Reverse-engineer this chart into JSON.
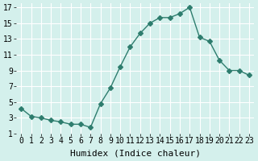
{
  "x": [
    0,
    1,
    2,
    3,
    4,
    5,
    6,
    7,
    8,
    9,
    10,
    11,
    12,
    13,
    14,
    15,
    16,
    17,
    18,
    19,
    20,
    21,
    22,
    23
  ],
  "y": [
    4.2,
    3.2,
    3.0,
    2.7,
    2.5,
    2.2,
    2.2,
    1.8,
    4.8,
    6.8,
    9.5,
    12.0,
    13.7,
    15.0,
    15.7,
    15.7,
    16.2,
    17.0,
    13.2,
    12.7,
    10.3,
    9.0,
    9.0,
    8.4
  ],
  "line_color": "#2e7d6e",
  "marker": "D",
  "marker_size": 3,
  "bg_color": "#d4f0ec",
  "grid_color": "#ffffff",
  "xlabel": "Humidex (Indice chaleur)",
  "xlim": [
    -0.5,
    23.5
  ],
  "ylim": [
    1,
    17.5
  ],
  "xticks": [
    0,
    1,
    2,
    3,
    4,
    5,
    6,
    7,
    8,
    9,
    10,
    11,
    12,
    13,
    14,
    15,
    16,
    17,
    18,
    19,
    20,
    21,
    22,
    23
  ],
  "xtick_labels": [
    "0",
    "1",
    "2",
    "3",
    "4",
    "5",
    "6",
    "7",
    "8",
    "9",
    "10",
    "11",
    "12",
    "13",
    "14",
    "15",
    "16",
    "17",
    "18",
    "19",
    "20",
    "21",
    "22",
    "23"
  ],
  "yticks": [
    1,
    3,
    5,
    7,
    9,
    11,
    13,
    15,
    17
  ],
  "ytick_labels": [
    "1",
    "3",
    "5",
    "7",
    "9",
    "11",
    "13",
    "15",
    "17"
  ],
  "font_size": 7,
  "label_font_size": 8
}
